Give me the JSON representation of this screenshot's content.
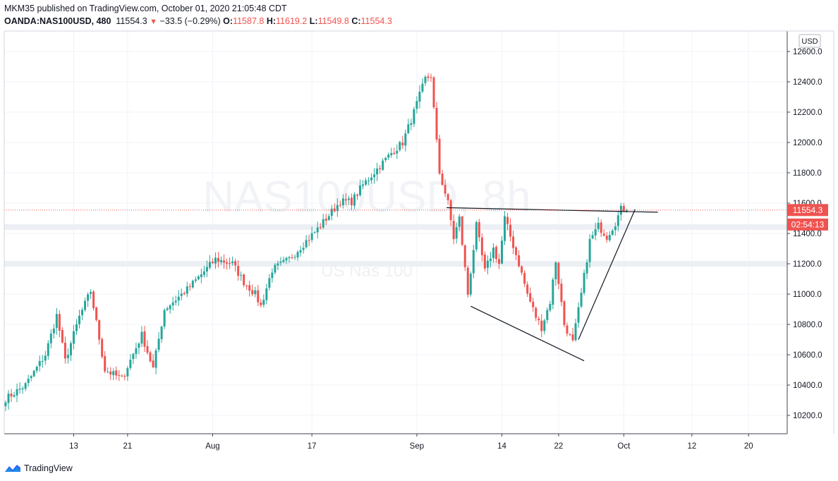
{
  "header": {
    "publisher_line": "MKM35 published on TradingView.com, October 01, 2020 21:05:48 CDT",
    "symbol": "OANDA:NAS100USD, 480",
    "last_price": "11554.3",
    "change": "−33.5 (−0.29%)",
    "o_label": "O:",
    "o_value": "11587.8",
    "h_label": "H:",
    "h_value": "11619.2",
    "l_label": "L:",
    "l_value": "11549.8",
    "c_label": "C:",
    "c_value": "11554.3"
  },
  "footer": {
    "brand": "TradingView"
  },
  "colors": {
    "up": "#26a69a",
    "down": "#ef5350",
    "grid": "#f0f3fa",
    "axis_text": "#131722"
  },
  "chart_data": {
    "type": "candlestick",
    "currency": "USD",
    "watermark_symbol": "NAS100USD, 8h",
    "watermark_name": "US Nas 100",
    "ylim": [
      10100,
      12700
    ],
    "y_ticks": [
      "10200.0",
      "10400.0",
      "10600.0",
      "10800.0",
      "11000.0",
      "11200.0",
      "11400.0",
      "11600.0",
      "11800.0",
      "12000.0",
      "12200.0",
      "12400.0",
      "12600.0"
    ],
    "x_ticks": [
      "13",
      "21",
      "Aug",
      "17",
      "Sep",
      "14",
      "22",
      "Oct",
      "12",
      "20"
    ],
    "price_tag": "11554.3",
    "countdown_tag": "02:54:13",
    "last_price": 11554.3,
    "waypoints": [
      [
        0,
        10310
      ],
      [
        7,
        10400
      ],
      [
        14,
        10600
      ],
      [
        18,
        10860
      ],
      [
        21,
        10560
      ],
      [
        26,
        10850
      ],
      [
        30,
        11020
      ],
      [
        35,
        10500
      ],
      [
        41,
        10440
      ],
      [
        48,
        10730
      ],
      [
        52,
        10510
      ],
      [
        56,
        10900
      ],
      [
        64,
        11030
      ],
      [
        74,
        11230
      ],
      [
        80,
        11200
      ],
      [
        84,
        11080
      ],
      [
        88,
        11000
      ],
      [
        90,
        10920
      ],
      [
        94,
        11160
      ],
      [
        100,
        11230
      ],
      [
        110,
        11430
      ],
      [
        118,
        11610
      ],
      [
        122,
        11610
      ],
      [
        126,
        11720
      ],
      [
        136,
        11930
      ],
      [
        140,
        12000
      ],
      [
        144,
        12200
      ],
      [
        148,
        12420
      ],
      [
        150,
        12440
      ],
      [
        152,
        12000
      ],
      [
        153,
        11800
      ],
      [
        156,
        11600
      ],
      [
        158,
        11370
      ],
      [
        160,
        11500
      ],
      [
        163,
        11000
      ],
      [
        166,
        11450
      ],
      [
        169,
        11150
      ],
      [
        172,
        11300
      ],
      [
        174,
        11200
      ],
      [
        176,
        11500
      ],
      [
        181,
        11200
      ],
      [
        184,
        11000
      ],
      [
        187,
        10850
      ],
      [
        189,
        10780
      ],
      [
        192,
        10950
      ],
      [
        194,
        11220
      ],
      [
        197,
        10800
      ],
      [
        200,
        10680
      ],
      [
        203,
        11000
      ],
      [
        206,
        11350
      ],
      [
        209,
        11450
      ],
      [
        212,
        11380
      ],
      [
        215,
        11470
      ],
      [
        217,
        11560
      ],
      [
        219,
        11565
      ]
    ],
    "annotations": {
      "resistance_line": {
        "from": [
          155.5,
          11570
        ],
        "to": [
          230,
          11540
        ]
      },
      "lower_trendline": {
        "from": [
          164,
          10920
        ],
        "to": [
          204,
          10560
        ]
      },
      "rising_trendline": {
        "from": [
          202,
          10700
        ],
        "to": [
          222,
          11560
        ]
      },
      "price_line": 11554.3
    }
  }
}
